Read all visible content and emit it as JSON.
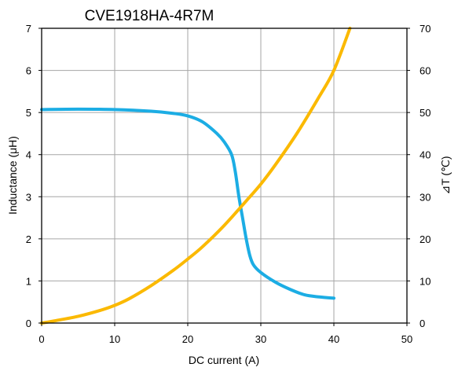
{
  "chart_data": {
    "type": "line",
    "title": "CVE1918HA-4R7M",
    "xlabel": "DC current (A)",
    "ylabel": "Inductance (μH)",
    "y2label": "⊿T (℃)",
    "xlim": [
      0,
      50
    ],
    "ylim": [
      0,
      7
    ],
    "y2lim": [
      0,
      70
    ],
    "xticks": [
      0,
      10,
      20,
      30,
      40,
      50
    ],
    "yticks": [
      0,
      1,
      2,
      3,
      4,
      5,
      6,
      7
    ],
    "y2ticks": [
      0,
      10,
      20,
      30,
      40,
      50,
      60,
      70
    ],
    "grid": true,
    "series": [
      {
        "axis": "left",
        "color": "#1cade4",
        "x": [
          0,
          5,
          10,
          15,
          18,
          20,
          22,
          24,
          25,
          26,
          26.5,
          27,
          27.5,
          28,
          28.5,
          29,
          30,
          32,
          34,
          36,
          38,
          40
        ],
        "y": [
          5.07,
          5.08,
          5.07,
          5.03,
          4.98,
          4.92,
          4.78,
          4.5,
          4.3,
          4.0,
          3.6,
          3.0,
          2.5,
          2.0,
          1.6,
          1.38,
          1.2,
          0.97,
          0.8,
          0.67,
          0.62,
          0.59
        ]
      },
      {
        "axis": "right",
        "color": "#fbb900",
        "x": [
          0,
          2,
          5,
          8,
          10,
          12,
          15,
          18,
          20,
          22,
          25,
          28,
          30,
          32,
          35,
          38,
          40,
          42.2
        ],
        "y": [
          0,
          0.6,
          1.6,
          3.0,
          4.2,
          5.8,
          8.9,
          12.5,
          15.2,
          18.1,
          23.2,
          29.0,
          33.0,
          37.6,
          45.2,
          53.8,
          60.0,
          70.0
        ]
      }
    ]
  }
}
